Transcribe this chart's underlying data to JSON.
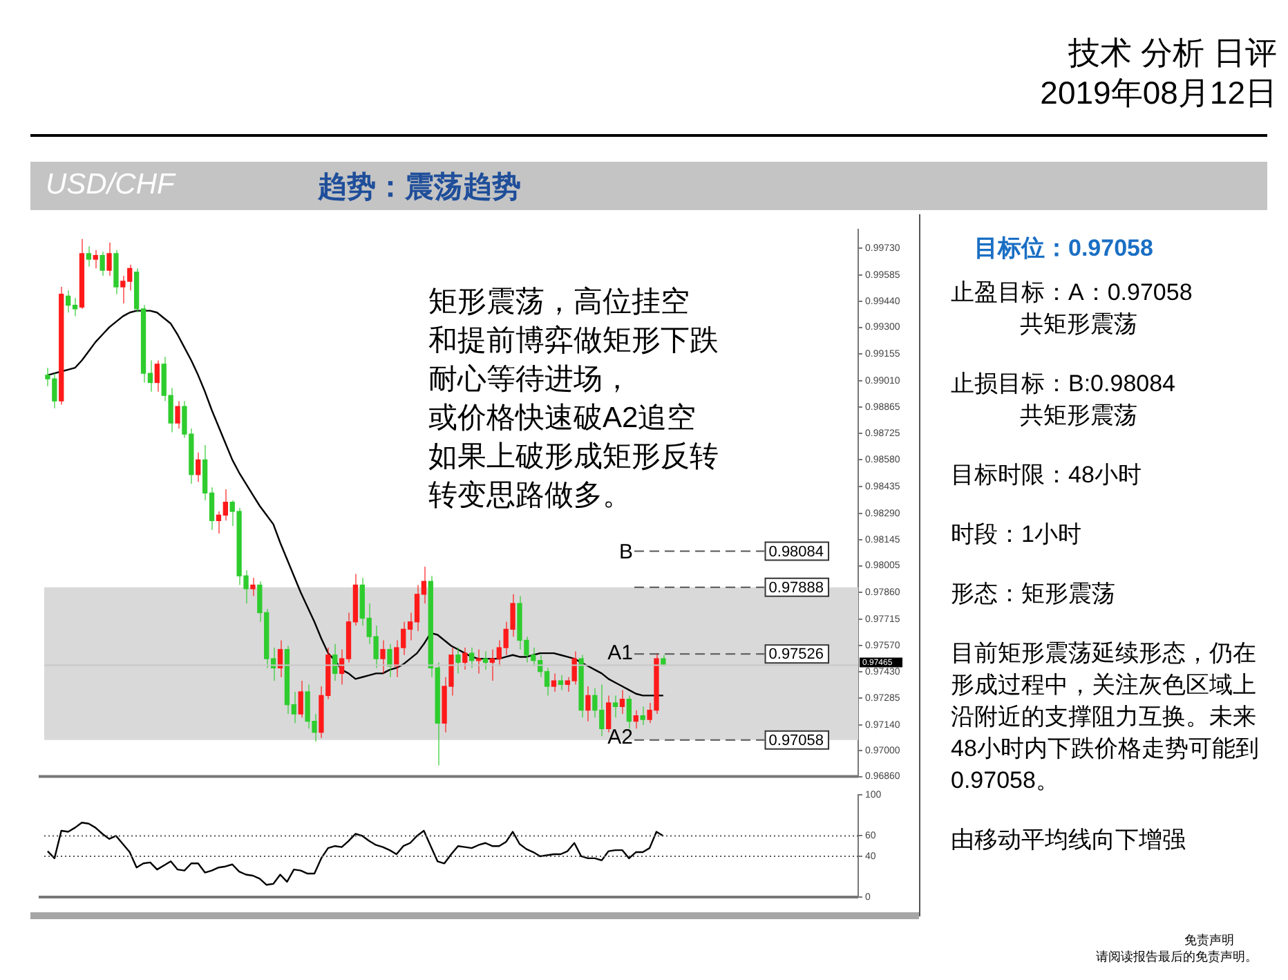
{
  "chart_data": [
    {
      "type": "candlestick",
      "title": "USD/CHF",
      "subtitle": "趋势：震荡趋势",
      "annotations": [
        "技术 分析 日评",
        "2019年08月12日",
        "矩形震荡，高位挂空",
        "和提前博弈做矩形下跌",
        "耐心等待进场，",
        "或价格快速破A2追空",
        "如果上破形成矩形反转",
        "转变思路做多。",
        "B",
        "A1",
        "A2",
        "免责声明",
        "请阅读报告最后的免责声明。"
      ],
      "categories": [
        null,
        null,
        null,
        null,
        null,
        null,
        null,
        null,
        null,
        null,
        null,
        null,
        null,
        null,
        null,
        null,
        null,
        null,
        null,
        null,
        null,
        null,
        null,
        null,
        null,
        null,
        null,
        null,
        null,
        null,
        null,
        null,
        null,
        null,
        null,
        null,
        null,
        null,
        null,
        null,
        null,
        null,
        null,
        null,
        null,
        null,
        null,
        null,
        null,
        null,
        null,
        null,
        null,
        null,
        null,
        null,
        null,
        null,
        null,
        null,
        null,
        null,
        null,
        null,
        null,
        null,
        null,
        null,
        null,
        null,
        null,
        null,
        null,
        null,
        null,
        null,
        null,
        null,
        null,
        null,
        null,
        null,
        null,
        null,
        null,
        null,
        null,
        null,
        null,
        null,
        null
      ],
      "ohlc": [
        [
          0.9904,
          0.9908,
          0.9898,
          0.9902
        ],
        [
          0.9902,
          0.9905,
          0.9886,
          0.989
        ],
        [
          0.989,
          0.9952,
          0.9888,
          0.9948
        ],
        [
          0.9947,
          0.995,
          0.9938,
          0.9942
        ],
        [
          0.9942,
          0.9946,
          0.9936,
          0.994
        ],
        [
          0.9941,
          0.9978,
          0.994,
          0.997
        ],
        [
          0.997,
          0.9974,
          0.9963,
          0.9967
        ],
        [
          0.9967,
          0.9972,
          0.9962,
          0.9969
        ],
        [
          0.9969,
          0.9971,
          0.9958,
          0.9961
        ],
        [
          0.9961,
          0.9976,
          0.9958,
          0.997
        ],
        [
          0.997,
          0.9972,
          0.9948,
          0.9952
        ],
        [
          0.9952,
          0.9958,
          0.9943,
          0.9955
        ],
        [
          0.9955,
          0.9964,
          0.995,
          0.9962
        ],
        [
          0.996,
          0.9962,
          0.9938,
          0.994
        ],
        [
          0.994,
          0.9942,
          0.99,
          0.9905
        ],
        [
          0.9905,
          0.9912,
          0.9895,
          0.99
        ],
        [
          0.99,
          0.9912,
          0.9895,
          0.991
        ],
        [
          0.991,
          0.9914,
          0.989,
          0.9893
        ],
        [
          0.9893,
          0.9897,
          0.9873,
          0.9878
        ],
        [
          0.9878,
          0.989,
          0.9875,
          0.9887
        ],
        [
          0.9887,
          0.989,
          0.987,
          0.9872
        ],
        [
          0.9872,
          0.9875,
          0.9845,
          0.985
        ],
        [
          0.985,
          0.9862,
          0.9846,
          0.9858
        ],
        [
          0.9858,
          0.9866,
          0.9836,
          0.984
        ],
        [
          0.984,
          0.9843,
          0.982,
          0.9825
        ],
        [
          0.9825,
          0.983,
          0.9818,
          0.9828
        ],
        [
          0.9828,
          0.9842,
          0.9825,
          0.9835
        ],
        [
          0.9835,
          0.9836,
          0.9822,
          0.983
        ],
        [
          0.983,
          0.9832,
          0.979,
          0.9795
        ],
        [
          0.9795,
          0.9798,
          0.978,
          0.9788
        ],
        [
          0.9788,
          0.9794,
          0.9784,
          0.979
        ],
        [
          0.979,
          0.9792,
          0.977,
          0.9775
        ],
        [
          0.9775,
          0.9777,
          0.9745,
          0.975
        ],
        [
          0.975,
          0.9756,
          0.9738,
          0.9745
        ],
        [
          0.9745,
          0.976,
          0.974,
          0.9755
        ],
        [
          0.9755,
          0.9757,
          0.972,
          0.9725
        ],
        [
          0.9725,
          0.9732,
          0.9715,
          0.972
        ],
        [
          0.972,
          0.9738,
          0.9718,
          0.9732
        ],
        [
          0.9732,
          0.9736,
          0.9712,
          0.9716
        ],
        [
          0.9716,
          0.972,
          0.9705,
          0.971
        ],
        [
          0.971,
          0.9735,
          0.9707,
          0.973
        ],
        [
          0.973,
          0.9756,
          0.9728,
          0.9752
        ],
        [
          0.9752,
          0.9758,
          0.9738,
          0.9742
        ],
        [
          0.9742,
          0.9755,
          0.9736,
          0.975
        ],
        [
          0.975,
          0.9775,
          0.9748,
          0.977
        ],
        [
          0.977,
          0.9796,
          0.9768,
          0.979
        ],
        [
          0.979,
          0.9794,
          0.9768,
          0.9772
        ],
        [
          0.9772,
          0.978,
          0.9758,
          0.9762
        ],
        [
          0.9762,
          0.9768,
          0.9745,
          0.975
        ],
        [
          0.975,
          0.976,
          0.9742,
          0.9755
        ],
        [
          0.9755,
          0.9758,
          0.974,
          0.9746
        ],
        [
          0.9746,
          0.976,
          0.974,
          0.9756
        ],
        [
          0.9756,
          0.977,
          0.9752,
          0.9766
        ],
        [
          0.9766,
          0.9775,
          0.976,
          0.977
        ],
        [
          0.977,
          0.979,
          0.9765,
          0.9785
        ],
        [
          0.9785,
          0.98,
          0.978,
          0.9792
        ],
        [
          0.9792,
          0.9795,
          0.974,
          0.9745
        ],
        [
          0.9745,
          0.9748,
          0.9692,
          0.9715
        ],
        [
          0.9715,
          0.974,
          0.971,
          0.9735
        ],
        [
          0.9735,
          0.9756,
          0.973,
          0.9752
        ],
        [
          0.9752,
          0.9756,
          0.9742,
          0.9748
        ],
        [
          0.9748,
          0.9756,
          0.9744,
          0.9753
        ],
        [
          0.9753,
          0.9756,
          0.9745,
          0.9749
        ],
        [
          0.9749,
          0.9755,
          0.9742,
          0.975
        ],
        [
          0.975,
          0.9754,
          0.9744,
          0.9748
        ],
        [
          0.9748,
          0.9755,
          0.9738,
          0.975
        ],
        [
          0.975,
          0.976,
          0.9746,
          0.9756
        ],
        [
          0.9756,
          0.977,
          0.9752,
          0.9766
        ],
        [
          0.9766,
          0.9785,
          0.9762,
          0.978
        ],
        [
          0.978,
          0.9784,
          0.9755,
          0.976
        ],
        [
          0.976,
          0.9762,
          0.9748,
          0.9752
        ],
        [
          0.9752,
          0.9756,
          0.9746,
          0.9749
        ],
        [
          0.9749,
          0.9752,
          0.974,
          0.9743
        ],
        [
          0.9743,
          0.9745,
          0.973,
          0.9735
        ],
        [
          0.9735,
          0.9742,
          0.9732,
          0.9738
        ],
        [
          0.9738,
          0.9741,
          0.9733,
          0.9736
        ],
        [
          0.9736,
          0.974,
          0.9732,
          0.9738
        ],
        [
          0.9738,
          0.9754,
          0.9736,
          0.975
        ],
        [
          0.975,
          0.9752,
          0.9718,
          0.9722
        ],
        [
          0.9722,
          0.9735,
          0.9716,
          0.973
        ],
        [
          0.973,
          0.9734,
          0.9718,
          0.9722
        ],
        [
          0.9722,
          0.9736,
          0.9708,
          0.9712
        ],
        [
          0.9712,
          0.973,
          0.971,
          0.9726
        ],
        [
          0.9726,
          0.973,
          0.9718,
          0.9724
        ],
        [
          0.9724,
          0.9733,
          0.972,
          0.9728
        ],
        [
          0.9728,
          0.973,
          0.9712,
          0.9716
        ],
        [
          0.9716,
          0.9722,
          0.9712,
          0.9719
        ],
        [
          0.9719,
          0.9724,
          0.9714,
          0.9717
        ],
        [
          0.9717,
          0.9726,
          0.9715,
          0.9722
        ],
        [
          0.9722,
          0.9753,
          0.972,
          0.975
        ],
        [
          0.975,
          0.9752,
          0.9746,
          0.97465
        ]
      ],
      "series": [
        {
          "type": "line",
          "color": "#000000",
          "values": [
            0.9904,
            0.9905,
            0.9906,
            0.9907,
            0.9908,
            0.9912,
            0.9917,
            0.9922,
            0.9926,
            0.993,
            0.9933,
            0.9936,
            0.9938,
            0.9939,
            0.9939,
            0.9939,
            0.9938,
            0.9935,
            0.9932,
            0.9926,
            0.9919,
            0.9912,
            0.9904,
            0.9895,
            0.9885,
            0.9876,
            0.9867,
            0.9858,
            0.9851,
            0.9845,
            0.9839,
            0.9833,
            0.9828,
            0.9823,
            0.9813,
            0.9804,
            0.9795,
            0.9786,
            0.9778,
            0.977,
            0.9761,
            0.9753,
            0.9749,
            0.9744,
            0.9742,
            0.9739,
            0.974,
            0.9741,
            0.9742,
            0.9742,
            0.9744,
            0.9745,
            0.9747,
            0.975,
            0.9753,
            0.9758,
            0.9764,
            0.9763,
            0.976,
            0.9757,
            0.9755,
            0.9753,
            0.9751,
            0.975,
            0.975,
            0.975,
            0.975,
            0.9751,
            0.9752,
            0.9751,
            0.9751,
            0.9752,
            0.9753,
            0.9753,
            0.9753,
            0.9752,
            0.9751,
            0.975,
            0.9748,
            0.9746,
            0.9744,
            0.9742,
            0.9739,
            0.9737,
            0.9735,
            0.9733,
            0.9731,
            0.973,
            0.973,
            0.973,
            0.973
          ]
        }
      ],
      "ylim": [
        0.9686,
        0.9983
      ],
      "yticks": [
        {
          "value": 0.9686,
          "label": "0.96860"
        },
        {
          "value": 0.97,
          "label": "0.97000"
        },
        {
          "value": 0.9714,
          "label": "0.97140"
        },
        {
          "value": 0.97285,
          "label": "0.97285"
        },
        {
          "value": 0.9743,
          "label": "0.97430"
        },
        {
          "value": 0.9757,
          "label": "0.97570"
        },
        {
          "value": 0.97715,
          "label": "0.97715"
        },
        {
          "value": 0.9786,
          "label": "0.97860"
        },
        {
          "value": 0.98005,
          "label": "0.98005"
        },
        {
          "value": 0.98145,
          "label": "0.98145"
        },
        {
          "value": 0.9829,
          "label": "0.98290"
        },
        {
          "value": 0.98435,
          "label": "0.98435"
        },
        {
          "value": 0.9858,
          "label": "0.98580"
        },
        {
          "value": 0.98725,
          "label": "0.98725"
        },
        {
          "value": 0.98865,
          "label": "0.98865"
        },
        {
          "value": 0.9901,
          "label": "0.99010"
        },
        {
          "value": 0.99155,
          "label": "0.99155"
        },
        {
          "value": 0.993,
          "label": "0.99300"
        },
        {
          "value": 0.9944,
          "label": "0.99440"
        },
        {
          "value": 0.99585,
          "label": "0.99585"
        },
        {
          "value": 0.9973,
          "label": "0.99730"
        }
      ],
      "bands": [
        {
          "axis": "y",
          "from": 0.97058,
          "to": 0.97888,
          "color": "#d9d9d9"
        }
      ],
      "ref_lines": [
        {
          "axis": "y",
          "value": 0.98084,
          "label": "0.98084",
          "line_style": "dashed"
        },
        {
          "axis": "y",
          "value": 0.97888,
          "label": "0.97888",
          "line_style": "dashed"
        },
        {
          "axis": "y",
          "value": 0.97526,
          "label": "0.97526",
          "line_style": "dashed"
        },
        {
          "axis": "y",
          "value": 0.97058,
          "label": "0.97058",
          "line_style": "dashed"
        },
        {
          "axis": "y",
          "value": 0.97465,
          "label": "0.97465",
          "line_style": "solid",
          "color": "#c8c8c8"
        }
      ],
      "tick_labels": "y"
    },
    {
      "type": "line",
      "color": "#000000",
      "categories": [
        null,
        null,
        null,
        null,
        null,
        null,
        null,
        null,
        null,
        null,
        null,
        null,
        null,
        null,
        null,
        null,
        null,
        null,
        null,
        null,
        null,
        null,
        null,
        null,
        null,
        null,
        null,
        null,
        null,
        null,
        null,
        null,
        null,
        null,
        null,
        null,
        null,
        null,
        null,
        null,
        null,
        null,
        null,
        null,
        null,
        null,
        null,
        null,
        null,
        null,
        null,
        null,
        null,
        null,
        null,
        null,
        null,
        null,
        null,
        null,
        null,
        null,
        null,
        null,
        null,
        null,
        null,
        null,
        null,
        null,
        null,
        null,
        null,
        null,
        null,
        null,
        null,
        null,
        null,
        null,
        null,
        null,
        null,
        null,
        null,
        null,
        null,
        null,
        null,
        null,
        null
      ],
      "values": [
        45,
        38,
        65,
        64,
        68,
        73,
        72,
        68,
        62,
        57,
        60,
        52,
        44,
        29,
        33,
        34,
        27,
        31,
        35,
        27,
        26,
        33,
        33,
        24,
        26,
        29,
        30,
        32,
        25,
        22,
        21,
        18,
        12,
        13,
        22,
        15,
        27,
        26,
        23,
        23,
        38,
        48,
        50,
        49,
        55,
        62,
        60,
        55,
        51,
        49,
        46,
        42,
        50,
        53,
        60,
        65,
        50,
        35,
        33,
        42,
        50,
        49,
        48,
        51,
        53,
        50,
        50,
        54,
        64,
        52,
        47,
        44,
        40,
        41,
        42,
        42,
        45,
        53,
        40,
        38,
        38,
        36,
        45,
        46,
        46,
        38,
        44,
        44,
        48,
        64,
        60
      ],
      "ylim": [
        0,
        100
      ],
      "yticks": [
        0,
        40,
        60,
        100
      ],
      "ref_lines": [
        {
          "axis": "y",
          "value": 40,
          "line_style": "dotted"
        },
        {
          "axis": "y",
          "value": 60,
          "line_style": "dotted"
        }
      ],
      "tick_labels": "y"
    },
    {
      "type": "other",
      "title": "目标位：0.97058",
      "annotations": [
        "止盈目标：A：0.97058",
        "共矩形震荡",
        "止损目标：B:0.98084",
        "共矩形震荡",
        "目标时限：48小时",
        "时段：1小时",
        "形态：矩形震荡",
        "目前矩形震荡延续形态，仍在形成过程中，关注灰色区域上沿附近的支撑阻力互换。未来48小时内下跌价格走势可能到0.97058。",
        "由移动平均线向下增强"
      ]
    }
  ]
}
